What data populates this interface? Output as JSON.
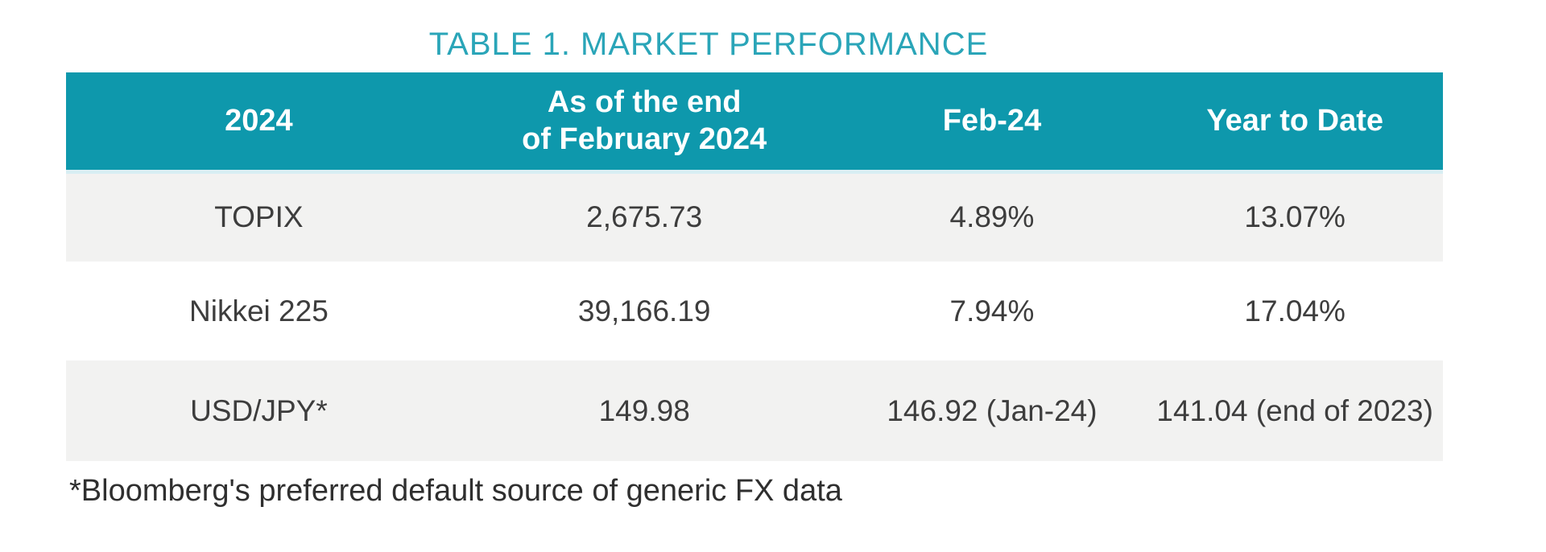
{
  "title": "TABLE 1. MARKET PERFORMANCE",
  "table": {
    "headers": [
      {
        "label": "2024"
      },
      {
        "label": "As of the end",
        "label2": "of February 2024"
      },
      {
        "label": "Feb-24"
      },
      {
        "label": "Year to Date"
      }
    ],
    "rows": [
      {
        "name": "TOPIX",
        "end_feb_2024": "2,675.73",
        "feb_24": "4.89%",
        "ytd": "13.07%"
      },
      {
        "name": "Nikkei 225",
        "end_feb_2024": "39,166.19",
        "feb_24": "7.94%",
        "ytd": "17.04%"
      },
      {
        "name": "USD/JPY*",
        "end_feb_2024": "149.98",
        "feb_24": "146.92 (Jan-24)",
        "ytd": "141.04 (end of 2023)"
      }
    ]
  },
  "footnote": "*Bloomberg's preferred default source of generic FX data",
  "colors": {
    "header_bg": "#0e98ac",
    "title_text": "#2aa5b8",
    "alt_row_bg": "#f2f2f1",
    "header_divider": "#d8eef3",
    "body_text": "#3d3d3d"
  }
}
